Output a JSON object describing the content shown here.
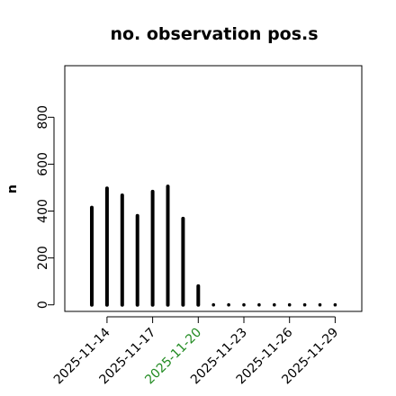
{
  "chart_data": {
    "type": "bar",
    "title": "no. observation pos.s",
    "xlabel": "",
    "ylabel": "n",
    "ylim": [
      -28,
      1020
    ],
    "yticks": [
      0,
      200,
      400,
      600,
      800
    ],
    "grid": false,
    "x": [
      "2025-11-13",
      "2025-11-14",
      "2025-11-15",
      "2025-11-16",
      "2025-11-17",
      "2025-11-18",
      "2025-11-19",
      "2025-11-20",
      "2025-11-21",
      "2025-11-22",
      "2025-11-23",
      "2025-11-24",
      "2025-11-25",
      "2025-11-26",
      "2025-11-27",
      "2025-11-28",
      "2025-11-29"
    ],
    "values": [
      415,
      497,
      467,
      380,
      483,
      505,
      368,
      80,
      0,
      0,
      0,
      0,
      0,
      0,
      0,
      0,
      0
    ],
    "xtick_labels": [
      {
        "date": "2025-11-14",
        "label": "2025-11-14",
        "color": "#000000"
      },
      {
        "date": "2025-11-17",
        "label": "2025-11-17",
        "color": "#000000"
      },
      {
        "date": "2025-11-20",
        "label": "2025-11-20",
        "color": "#228B22"
      },
      {
        "date": "2025-11-23",
        "label": "2025-11-23",
        "color": "#000000"
      },
      {
        "date": "2025-11-26",
        "label": "2025-11-26",
        "color": "#000000"
      },
      {
        "date": "2025-11-29",
        "label": "2025-11-29",
        "color": "#000000"
      }
    ],
    "bar_color": "#000000"
  }
}
